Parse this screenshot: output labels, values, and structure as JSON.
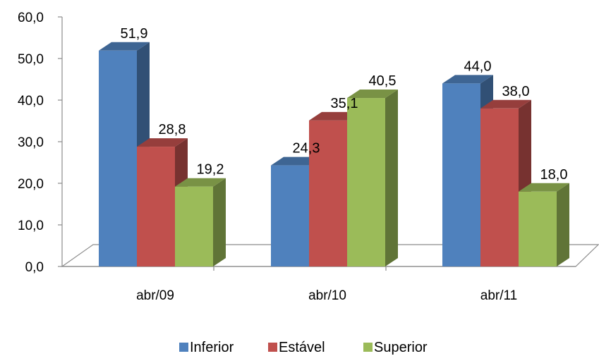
{
  "chart_data": {
    "type": "bar",
    "style": "3d-clustered-column",
    "categories": [
      "abr/09",
      "abr/10",
      "abr/11"
    ],
    "series": [
      {
        "name": "Inferior",
        "values": [
          51.9,
          24.3,
          44.0
        ],
        "labels": [
          "51,9",
          "24,3",
          "44,0"
        ],
        "color": "#4F81BD"
      },
      {
        "name": "Estável",
        "values": [
          28.8,
          35.1,
          38.0
        ],
        "labels": [
          "28,8",
          "35,1",
          "38,0"
        ],
        "color": "#C0504D"
      },
      {
        "name": "Superior",
        "values": [
          19.2,
          40.5,
          18.0
        ],
        "labels": [
          "19,2",
          "40,5",
          "18,0"
        ],
        "color": "#9BBB59"
      }
    ],
    "yticks": [
      "0,0",
      "10,0",
      "20,0",
      "30,0",
      "40,0",
      "50,0",
      "60,0"
    ],
    "ylim": [
      0,
      60
    ],
    "title": "",
    "xlabel": "",
    "ylabel": "",
    "legend_position": "bottom",
    "grid": false
  }
}
